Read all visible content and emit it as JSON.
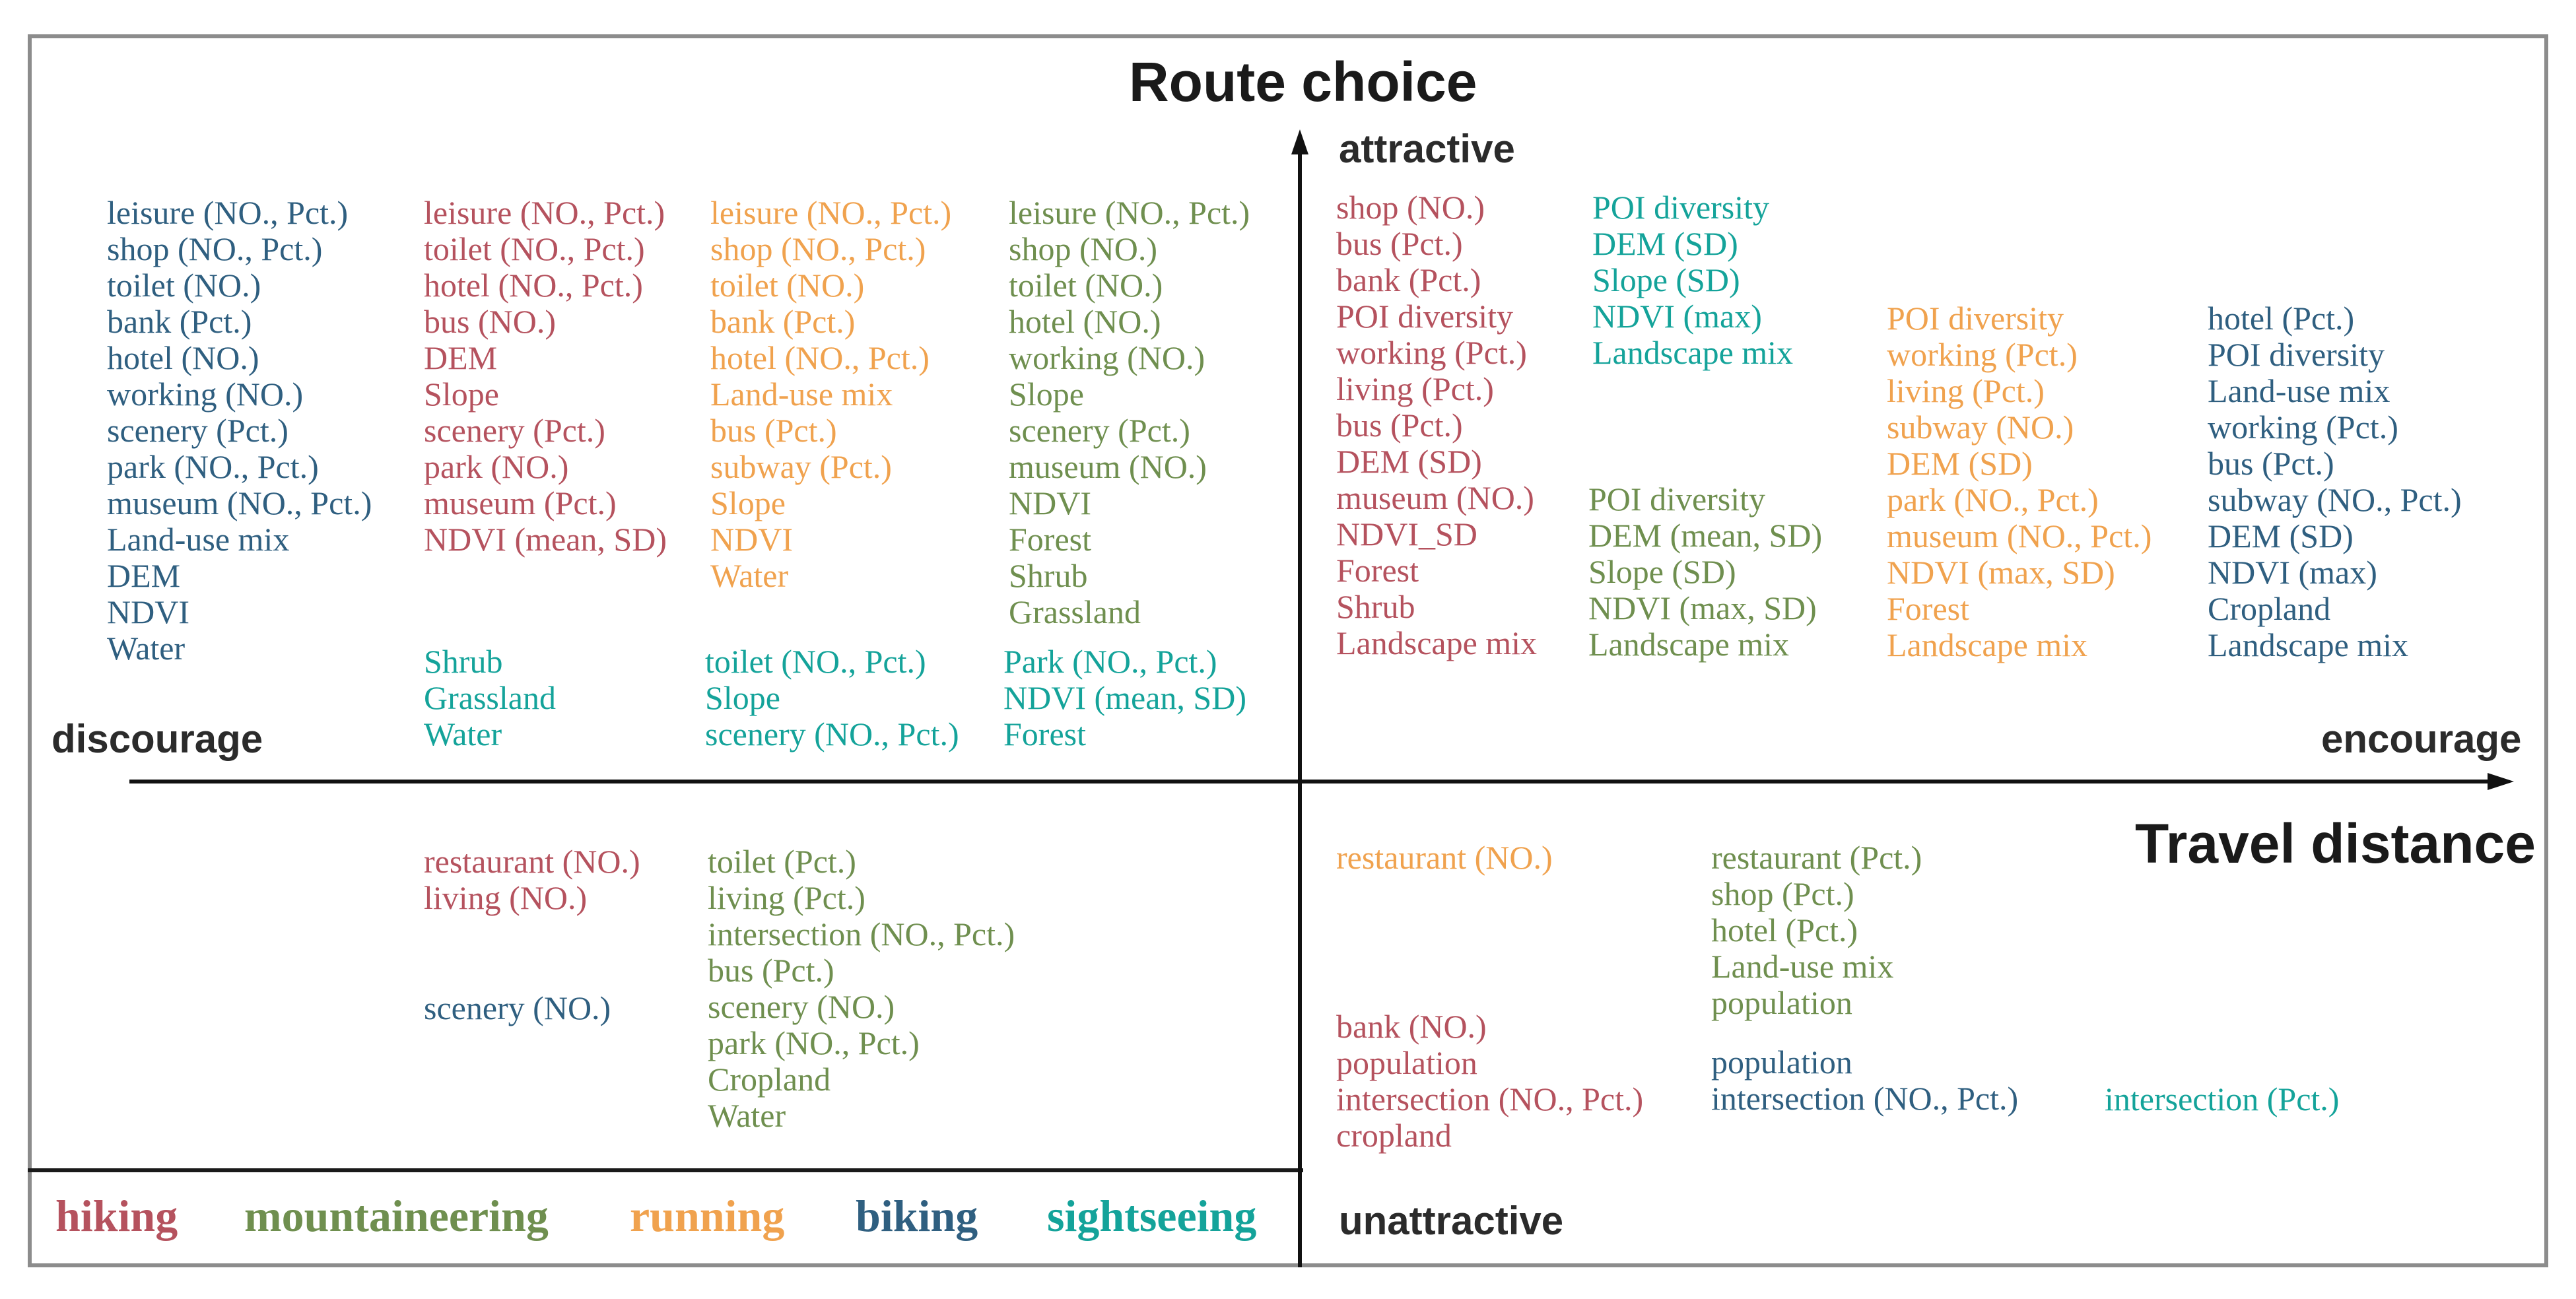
{
  "colors": {
    "hiking": "#b5525e",
    "mountaineering": "#6f8f4f",
    "running": "#f0a24e",
    "biking": "#2f5f80",
    "sightseeing": "#14a39a",
    "axis": "#111111",
    "frame": "#8c8c8c"
  },
  "titles": {
    "route_choice": "Route choice",
    "travel_distance": "Travel distance"
  },
  "axis_labels": {
    "attractive": "attractive",
    "unattractive": "unattractive",
    "discourage": "discourage",
    "encourage": "encourage"
  },
  "legend": [
    {
      "key": "hiking",
      "label": "hiking"
    },
    {
      "key": "mountaineering",
      "label": "mountaineering"
    },
    {
      "key": "running",
      "label": "running"
    },
    {
      "key": "biking",
      "label": "biking"
    },
    {
      "key": "sightseeing",
      "label": "sightseeing"
    }
  ],
  "groups": [
    {
      "id": "tl-biking",
      "quadrant": "attractive-discourage",
      "mode": "biking",
      "items": [
        "leisure (NO., Pct.)",
        "shop (NO., Pct.)",
        "toilet (NO.)",
        "bank (Pct.)",
        "hotel (NO.)",
        "working (NO.)",
        "scenery (Pct.)",
        "park (NO., Pct.)",
        "museum (NO., Pct.)",
        "Land-use mix",
        "DEM",
        "NDVI",
        "Water"
      ]
    },
    {
      "id": "tl-hiking",
      "quadrant": "attractive-discourage",
      "mode": "hiking",
      "items": [
        "leisure (NO., Pct.)",
        "toilet (NO., Pct.)",
        "hotel (NO., Pct.)",
        "bus (NO.)",
        "DEM",
        "Slope",
        "scenery (Pct.)",
        "park (NO.)",
        "museum (Pct.)",
        "NDVI (mean, SD)"
      ]
    },
    {
      "id": "tl-running",
      "quadrant": "attractive-discourage",
      "mode": "running",
      "items": [
        "leisure (NO., Pct.)",
        "shop (NO., Pct.)",
        "toilet (NO.)",
        "bank (Pct.)",
        "hotel (NO., Pct.)",
        "Land-use mix",
        "bus (Pct.)",
        "subway (Pct.)",
        "Slope",
        "NDVI",
        "Water"
      ]
    },
    {
      "id": "tl-mountaineering",
      "quadrant": "attractive-discourage",
      "mode": "mountaineering",
      "items": [
        "leisure (NO., Pct.)",
        "shop (NO.)",
        "toilet (NO.)",
        "hotel (NO.)",
        "working (NO.)",
        "Slope",
        "scenery (Pct.)",
        "museum (NO.)",
        "NDVI",
        "Forest",
        "Shrub",
        "Grassland"
      ]
    },
    {
      "id": "tl-sightseeing-1",
      "quadrant": "attractive-discourage",
      "mode": "sightseeing",
      "items": [
        "Shrub",
        "Grassland",
        "Water"
      ]
    },
    {
      "id": "tl-sightseeing-2",
      "quadrant": "attractive-discourage",
      "mode": "sightseeing",
      "items": [
        "toilet (NO., Pct.)",
        "Slope",
        "scenery (NO., Pct.)"
      ]
    },
    {
      "id": "tl-sightseeing-3",
      "quadrant": "attractive-discourage",
      "mode": "sightseeing",
      "items": [
        "Park (NO., Pct.)",
        "NDVI (mean, SD)",
        "Forest"
      ]
    },
    {
      "id": "tr-hiking",
      "quadrant": "attractive-encourage",
      "mode": "hiking",
      "items": [
        "shop (NO.)",
        "bus (Pct.)",
        "bank (Pct.)",
        "POI diversity",
        "working (Pct.)",
        "living (Pct.)",
        "bus (Pct.)",
        "DEM (SD)",
        "museum (NO.)",
        "NDVI_SD",
        "Forest",
        "Shrub",
        "Landscape mix"
      ]
    },
    {
      "id": "tr-sightseeing",
      "quadrant": "attractive-encourage",
      "mode": "sightseeing",
      "items": [
        "POI diversity",
        "DEM (SD)",
        "Slope (SD)",
        "NDVI (max)",
        "Landscape mix"
      ]
    },
    {
      "id": "tr-mountaineering",
      "quadrant": "attractive-encourage",
      "mode": "mountaineering",
      "items": [
        "POI diversity",
        "DEM (mean, SD)",
        "Slope (SD)",
        "NDVI (max, SD)",
        "Landscape mix"
      ]
    },
    {
      "id": "tr-running",
      "quadrant": "attractive-encourage",
      "mode": "running",
      "items": [
        "POI diversity",
        "working (Pct.)",
        "living (Pct.)",
        "subway (NO.)",
        "DEM (SD)",
        "park (NO., Pct.)",
        "museum (NO., Pct.)",
        "NDVI (max, SD)",
        "Forest",
        "Landscape mix"
      ]
    },
    {
      "id": "tr-biking",
      "quadrant": "attractive-encourage",
      "mode": "biking",
      "items": [
        "hotel (Pct.)",
        "POI diversity",
        "Land-use mix",
        "working (Pct.)",
        "bus (Pct.)",
        "subway (NO., Pct.)",
        "DEM (SD)",
        "NDVI (max)",
        "Cropland",
        "Landscape mix"
      ]
    },
    {
      "id": "bl-hiking",
      "quadrant": "unattractive-discourage",
      "mode": "hiking",
      "items": [
        "restaurant (NO.)",
        "living (NO.)"
      ]
    },
    {
      "id": "bl-biking",
      "quadrant": "unattractive-discourage",
      "mode": "biking",
      "items": [
        "scenery (NO.)"
      ]
    },
    {
      "id": "bl-mountaineering",
      "quadrant": "unattractive-discourage",
      "mode": "mountaineering",
      "items": [
        "toilet (Pct.)",
        "living (Pct.)",
        "intersection (NO., Pct.)",
        "bus (Pct.)",
        "scenery (NO.)",
        "park (NO., Pct.)",
        "Cropland",
        "Water"
      ]
    },
    {
      "id": "br-running",
      "quadrant": "unattractive-encourage",
      "mode": "running",
      "items": [
        "restaurant (NO.)"
      ]
    },
    {
      "id": "br-hiking",
      "quadrant": "unattractive-encourage",
      "mode": "hiking",
      "items": [
        "bank (NO.)",
        "population",
        "intersection (NO., Pct.)",
        "cropland"
      ]
    },
    {
      "id": "br-mountaineering",
      "quadrant": "unattractive-encourage",
      "mode": "mountaineering",
      "items": [
        "restaurant (Pct.)",
        "shop (Pct.)",
        "hotel (Pct.)",
        "Land-use mix",
        "population"
      ]
    },
    {
      "id": "br-biking",
      "quadrant": "unattractive-encourage",
      "mode": "biking",
      "items": [
        "population",
        "intersection (NO., Pct.)"
      ]
    },
    {
      "id": "br-sightseeing",
      "quadrant": "unattractive-encourage",
      "mode": "sightseeing",
      "items": [
        "intersection (Pct.)"
      ]
    }
  ]
}
